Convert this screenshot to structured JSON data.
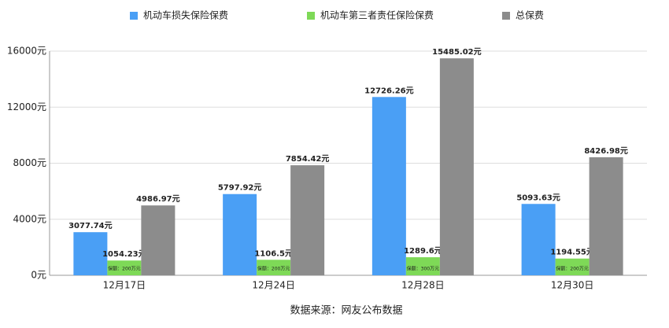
{
  "chart_data": {
    "type": "bar",
    "categories": [
      "12月17日",
      "12月24日",
      "12月28日",
      "12月30日"
    ],
    "series": [
      {
        "name": "机动车损失保险保费",
        "color": "#4a9ff5",
        "values": [
          3077.74,
          5797.92,
          12726.26,
          5093.63
        ],
        "value_labels": [
          "3077.74元",
          "5797.92元",
          "12726.26元",
          "5093.63元"
        ]
      },
      {
        "name": "机动车第三者责任保险保费",
        "color": "#7ed957",
        "values": [
          1054.23,
          1106.5,
          1289.6,
          1194.55
        ],
        "value_labels": [
          "1054.23元",
          "1106.5元",
          "1289.6元",
          "1194.55元"
        ],
        "bar_notes": [
          "保额：200万元",
          "保额：200万元",
          "保额：300万元",
          "保额：200万元"
        ]
      },
      {
        "name": "总保费",
        "color": "#8c8c8c",
        "values": [
          4986.97,
          7854.42,
          15485.02,
          8426.98
        ],
        "value_labels": [
          "4986.97元",
          "7854.42元",
          "15485.02元",
          "8426.98元"
        ]
      }
    ],
    "ylim": [
      0,
      16000
    ],
    "yticks": [
      {
        "value": 0,
        "label": "0元"
      },
      {
        "value": 4000,
        "label": "4000元"
      },
      {
        "value": 8000,
        "label": "8000元"
      },
      {
        "value": 12000,
        "label": "12000元"
      },
      {
        "value": 16000,
        "label": "16000元"
      }
    ],
    "grid": true,
    "source": "数据来源：网友公布数据"
  }
}
